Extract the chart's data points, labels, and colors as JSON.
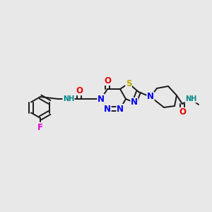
{
  "background_color": "#e8e8e8",
  "bond_color": "#1a1a1a",
  "bond_width": 1.4,
  "atom_colors": {
    "N": "#0000ee",
    "O": "#ee0000",
    "S": "#bbaa00",
    "F": "#dd00dd",
    "H": "#008888",
    "C": "#1a1a1a"
  },
  "font_size_atom": 8.5,
  "font_size_small": 7.0,
  "figsize": [
    3.0,
    3.0
  ],
  "dpi": 100
}
